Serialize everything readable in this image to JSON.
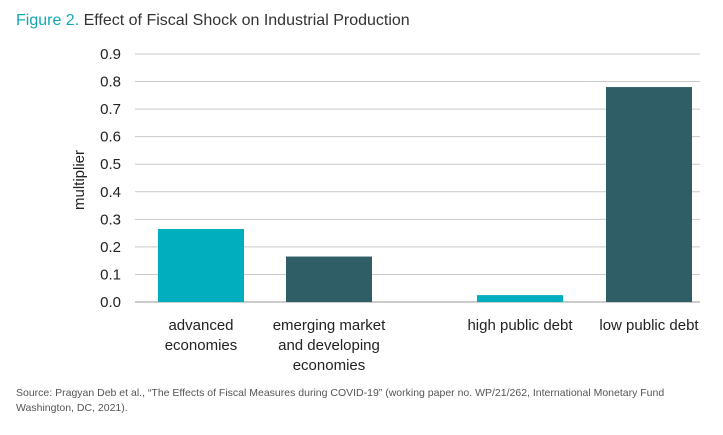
{
  "figure": {
    "label": "Figure 2.",
    "title": "Effect of Fiscal Shock on Industrial Production"
  },
  "colors": {
    "accent": "#13a7b6",
    "teal": "#00aebe",
    "dark_slate": "#2f5e66",
    "gridline": "#c9c9c9",
    "axis_text": "#222222"
  },
  "chart_data": {
    "type": "bar",
    "ylabel": "multiplier",
    "ylim": [
      0,
      0.9
    ],
    "yticks": [
      "0.0",
      "0.1",
      "0.2",
      "0.3",
      "0.4",
      "0.5",
      "0.6",
      "0.7",
      "0.8",
      "0.9"
    ],
    "grid": true,
    "bars": [
      {
        "category": [
          "advanced",
          "economies"
        ],
        "value": 0.265,
        "color": "#00aebe"
      },
      {
        "category": [
          "emerging market",
          "and developing",
          "economies"
        ],
        "value": 0.165,
        "color": "#2f5e66"
      },
      {
        "category": [
          "high public debt"
        ],
        "value": 0.025,
        "color": "#00aebe"
      },
      {
        "category": [
          "low public debt"
        ],
        "value": 0.78,
        "color": "#2f5e66"
      }
    ]
  },
  "source": {
    "line1": "Source: Pragyan Deb et al., “The Effects of Fiscal Measures during COVID-19” (working paper no. WP/21/262, International Monetary Fund",
    "line2": "Washington, DC, 2021)."
  }
}
